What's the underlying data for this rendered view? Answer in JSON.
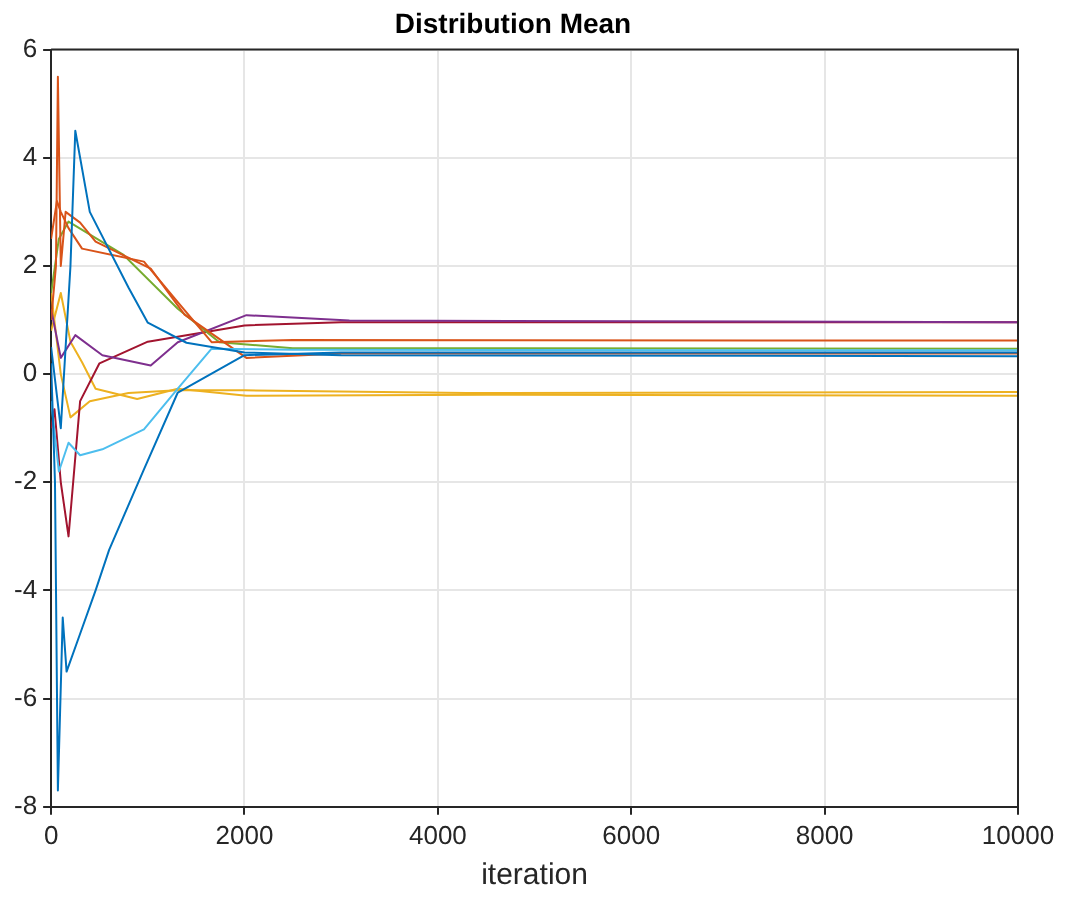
{
  "chart_data": {
    "type": "line",
    "title": "Distribution Mean",
    "xlabel": "iteration",
    "xlim": [
      0,
      10000
    ],
    "xticks": [
      0,
      2000,
      4000,
      6000,
      8000,
      10000
    ],
    "ylim": [
      -8,
      6
    ],
    "yticks": [
      -8,
      -6,
      -4,
      -2,
      0,
      2,
      4,
      6
    ],
    "grid": true,
    "legend": false,
    "marker": "none",
    "line_style": "solid",
    "series": [
      {
        "color": "#0072bd",
        "x": [
          0,
          100,
          200,
          250,
          400,
          800,
          1000,
          1400,
          2000,
          3000,
          10000
        ],
        "values": [
          0.5,
          -1,
          2,
          4.5,
          3.0,
          1.6,
          0.95,
          0.58,
          0.4,
          0.35,
          0.33
        ]
      },
      {
        "color": "#0072bd",
        "x": [
          0,
          40,
          70,
          120,
          160,
          300,
          460,
          600,
          960,
          1310,
          2000,
          3000,
          10000
        ],
        "values": [
          0.2,
          -2,
          -7.7,
          -4.5,
          -5.5,
          -4.8,
          -4.0,
          -3.25,
          -1.76,
          -0.34,
          0.35,
          0.4,
          0.4
        ]
      },
      {
        "color": "#4dbeee",
        "x": [
          0,
          80,
          180,
          300,
          530,
          960,
          1310,
          1660,
          2500,
          10000
        ],
        "values": [
          -0.5,
          -1.8,
          -1.27,
          -1.5,
          -1.39,
          -1.02,
          -0.27,
          0.47,
          0.45,
          0.44
        ]
      },
      {
        "color": "#d95319",
        "x": [
          0,
          60,
          100,
          180,
          320,
          960,
          1310,
          1660,
          2500,
          10000
        ],
        "values": [
          2.5,
          3.2,
          3.0,
          2.7,
          2.32,
          2.08,
          1.33,
          0.59,
          0.63,
          0.62
        ]
      },
      {
        "color": "#d95319",
        "x": [
          0,
          50,
          70,
          100,
          150,
          300,
          460,
          1030,
          1380,
          2020,
          3000,
          10000
        ],
        "values": [
          1.0,
          2.0,
          5.5,
          2.0,
          3.0,
          2.8,
          2.45,
          1.95,
          1.1,
          0.3,
          0.38,
          0.38
        ]
      },
      {
        "color": "#77ac30",
        "x": [
          0,
          80,
          180,
          745,
          1310,
          1740,
          2500,
          10000
        ],
        "values": [
          1.5,
          2.5,
          2.82,
          2.21,
          1.21,
          0.59,
          0.48,
          0.47
        ]
      },
      {
        "color": "#7e2f8e",
        "x": [
          0,
          100,
          250,
          530,
          1030,
          1310,
          2020,
          3085,
          10000
        ],
        "values": [
          1.2,
          0.3,
          0.72,
          0.35,
          0.16,
          0.59,
          1.09,
          0.99,
          0.96
        ]
      },
      {
        "color": "#a2142f",
        "x": [
          0,
          35,
          100,
          180,
          300,
          500,
          1000,
          2000,
          3000,
          10000
        ],
        "values": [
          -1,
          -0.65,
          -2,
          -3,
          -0.5,
          0.2,
          0.6,
          0.9,
          0.96,
          0.96
        ]
      },
      {
        "color": "#edb120",
        "x": [
          0,
          100,
          200,
          320,
          460,
          890,
          1310,
          2020,
          4500,
          10000
        ],
        "values": [
          0.8,
          1.5,
          0.6,
          0.22,
          -0.27,
          -0.46,
          -0.27,
          -0.4,
          -0.38,
          -0.4
        ]
      },
      {
        "color": "#edb120",
        "x": [
          0,
          100,
          200,
          400,
          800,
          1300,
          2000,
          4300,
          10000
        ],
        "values": [
          1.5,
          0,
          -0.8,
          -0.5,
          -0.35,
          -0.3,
          -0.3,
          -0.35,
          -0.33
        ]
      }
    ]
  }
}
